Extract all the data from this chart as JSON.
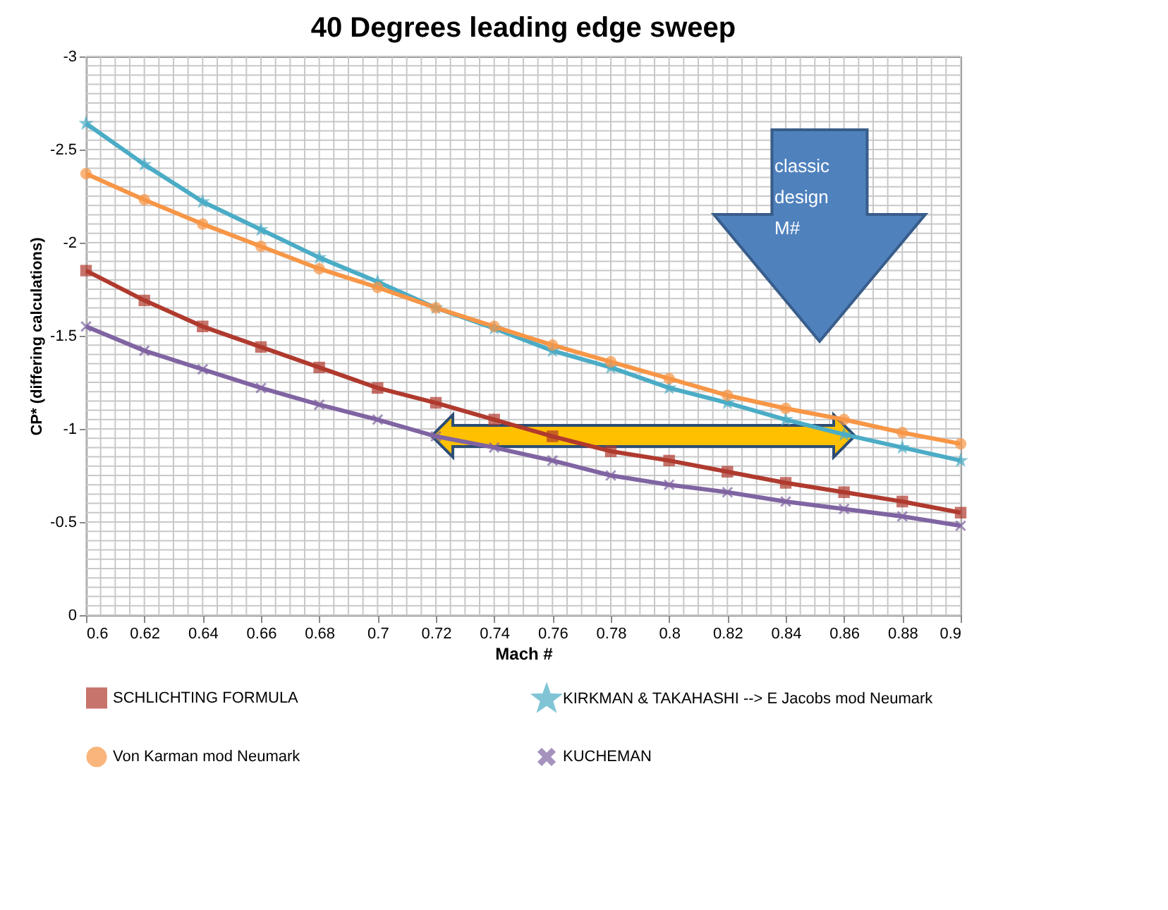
{
  "chart_data": {
    "type": "line",
    "title": "40 Degrees leading edge sweep",
    "xlabel": "Mach #",
    "ylabel": "CP* (differing calculations)",
    "x": [
      0.6,
      0.62,
      0.64,
      0.66,
      0.68,
      0.7,
      0.72,
      0.74,
      0.76,
      0.78,
      0.8,
      0.82,
      0.84,
      0.86,
      0.88,
      0.9
    ],
    "series": [
      {
        "name": "SCHLICHTING FORMULA",
        "color": "#b03a2e",
        "marker": "square",
        "values": [
          -1.85,
          -1.69,
          -1.55,
          -1.44,
          -1.33,
          -1.22,
          -1.14,
          -1.05,
          -0.96,
          -0.88,
          -0.83,
          -0.77,
          -0.71,
          -0.66,
          -0.61,
          -0.55
        ]
      },
      {
        "name": "KIRKMAN & TAKAHASHI --> E Jacobs mod Neumark",
        "color": "#4bacc6",
        "marker": "star",
        "values": [
          -2.64,
          -2.42,
          -2.22,
          -2.07,
          -1.92,
          -1.79,
          -1.65,
          -1.54,
          -1.42,
          -1.33,
          -1.22,
          -1.14,
          -1.05,
          -0.97,
          -0.9,
          -0.83
        ]
      },
      {
        "name": "Von Karman mod Neumark",
        "color": "#f79646",
        "marker": "circle",
        "values": [
          -2.37,
          -2.23,
          -2.1,
          -1.98,
          -1.86,
          -1.76,
          -1.65,
          -1.55,
          -1.45,
          -1.36,
          -1.27,
          -1.18,
          -1.11,
          -1.05,
          -0.98,
          -0.92
        ]
      },
      {
        "name": "KUCHEMAN",
        "color": "#8064a2",
        "marker": "cross",
        "values": [
          -1.55,
          -1.42,
          -1.32,
          -1.22,
          -1.13,
          -1.05,
          -0.96,
          -0.9,
          -0.83,
          -0.75,
          -0.7,
          -0.66,
          -0.61,
          -0.57,
          -0.53,
          -0.48
        ]
      }
    ],
    "xlim": [
      0.6,
      0.9
    ],
    "ylim": [
      0,
      -3
    ],
    "xticks": [
      0.6,
      0.62,
      0.64,
      0.66,
      0.68,
      0.7,
      0.72,
      0.74,
      0.76,
      0.78,
      0.8,
      0.82,
      0.84,
      0.86,
      0.88,
      0.9
    ],
    "yticks": [
      0,
      -0.5,
      -1,
      -1.5,
      -2,
      -2.5,
      -3
    ],
    "grid": true,
    "legend": "bottom",
    "line_style": "solid",
    "annotations": [
      "classic design M#"
    ]
  }
}
